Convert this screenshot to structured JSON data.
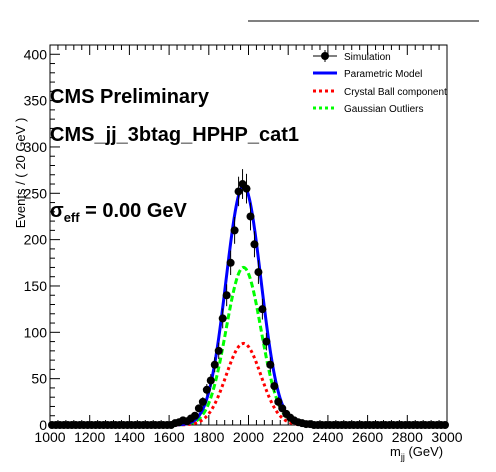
{
  "chart_data": {
    "type": "line",
    "xlabel_main": "m",
    "xlabel_sub": "jj",
    "xlabel_unit": " (GeV)",
    "ylabel": "Events / ( 20 GeV )",
    "xlim": [
      1000,
      3000
    ],
    "ylim": [
      0,
      410
    ],
    "x_ticks": [
      1000,
      1200,
      1400,
      1600,
      1800,
      2000,
      2200,
      2400,
      2600,
      2800,
      3000
    ],
    "y_ticks": [
      0,
      50,
      100,
      150,
      200,
      250,
      300,
      350,
      400
    ],
    "grid": false,
    "legend_position": "top-right",
    "annotations": {
      "title_line1": "CMS Preliminary",
      "title_line2": "CMS_jj_3btag_HPHP_cat1",
      "sigma_symbol": "σ",
      "sigma_sub": "eff",
      "sigma_value": " = 0.00 GeV"
    },
    "series": [
      {
        "name": "Simulation",
        "kind": "points",
        "color": "#000000",
        "x": [
          1010,
          1030,
          1050,
          1070,
          1090,
          1110,
          1130,
          1150,
          1170,
          1190,
          1210,
          1230,
          1250,
          1270,
          1290,
          1310,
          1330,
          1350,
          1370,
          1390,
          1410,
          1430,
          1450,
          1470,
          1490,
          1510,
          1530,
          1550,
          1570,
          1590,
          1610,
          1630,
          1650,
          1670,
          1690,
          1710,
          1730,
          1750,
          1770,
          1790,
          1810,
          1830,
          1850,
          1870,
          1890,
          1910,
          1930,
          1950,
          1970,
          1990,
          2010,
          2030,
          2050,
          2070,
          2090,
          2110,
          2130,
          2150,
          2170,
          2190,
          2210,
          2230,
          2250,
          2270,
          2290,
          2310,
          2330,
          2350,
          2370,
          2390,
          2410,
          2430,
          2450,
          2470,
          2490,
          2510,
          2530,
          2550,
          2570,
          2590,
          2610,
          2630,
          2650,
          2670,
          2690,
          2710,
          2730,
          2750,
          2770,
          2790,
          2810,
          2830,
          2850,
          2870,
          2890,
          2910,
          2930,
          2950,
          2970,
          2990
        ],
        "y": [
          0,
          0,
          0,
          0,
          0,
          0,
          0,
          0,
          0,
          0,
          0,
          0,
          0,
          0,
          0,
          0,
          0,
          0,
          0,
          0,
          0,
          0,
          0,
          0,
          0,
          0,
          0,
          0,
          0,
          0,
          0,
          2,
          3,
          5,
          4,
          7,
          10,
          18,
          25,
          38,
          48,
          65,
          80,
          115,
          140,
          175,
          210,
          252,
          260,
          255,
          225,
          195,
          165,
          125,
          90,
          65,
          42,
          25,
          18,
          12,
          8,
          5,
          3,
          2,
          1,
          1,
          0,
          0,
          0,
          0,
          0,
          0,
          0,
          0,
          0,
          0,
          0,
          0,
          0,
          0,
          0,
          0,
          0,
          0,
          0,
          0,
          0,
          0,
          0,
          0,
          0,
          0,
          0,
          0,
          0,
          0,
          0,
          0,
          0,
          0
        ],
        "err": [
          0,
          0,
          0,
          0,
          0,
          0,
          0,
          0,
          0,
          0,
          0,
          0,
          0,
          0,
          0,
          0,
          0,
          0,
          0,
          0,
          0,
          0,
          0,
          0,
          0,
          0,
          0,
          0,
          0,
          0,
          0,
          1.4,
          1.7,
          2.2,
          2,
          2.6,
          3.2,
          4.2,
          5,
          6.2,
          6.9,
          8.1,
          8.9,
          10.7,
          11.8,
          13.2,
          14.5,
          15.9,
          16.1,
          16,
          15,
          14,
          12.8,
          11.2,
          9.5,
          8.1,
          6.5,
          5,
          4.2,
          3.5,
          2.8,
          2.2,
          1.7,
          1.4,
          1,
          1,
          0,
          0,
          0,
          0,
          0,
          0,
          0,
          0,
          0,
          0,
          0,
          0,
          0,
          0,
          0,
          0,
          0,
          0,
          0,
          0,
          0,
          0,
          0,
          0,
          0,
          0,
          0,
          0,
          0,
          0,
          0,
          0,
          0,
          0
        ]
      },
      {
        "name": "Parametric Model",
        "kind": "gauss",
        "color": "#0000ff",
        "amp": 258,
        "mean": 1975,
        "sigma": 88,
        "dash": ""
      },
      {
        "name": "Crystal Ball component",
        "kind": "gauss",
        "color": "#ff0000",
        "amp": 88,
        "mean": 1975,
        "sigma": 88,
        "dash": "3,3"
      },
      {
        "name": "Gaussian Outliers",
        "kind": "gauss",
        "color": "#00ff00",
        "amp": 170,
        "mean": 1975,
        "sigma": 88,
        "dash": "6,3"
      }
    ]
  }
}
